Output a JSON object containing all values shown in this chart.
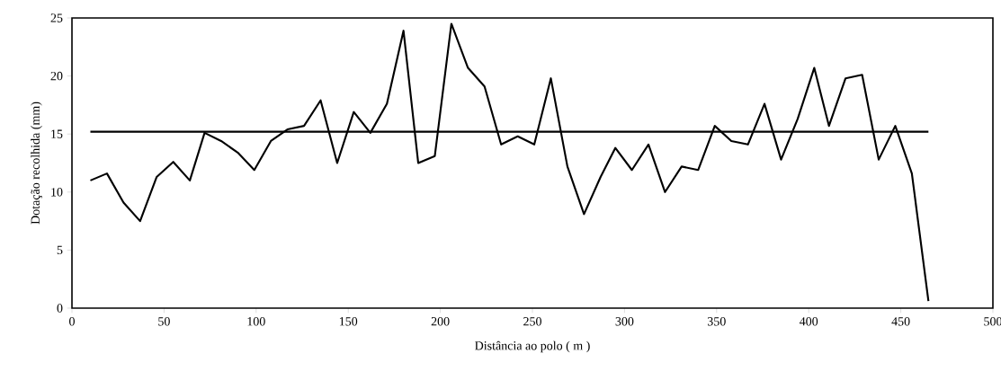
{
  "chart_data": {
    "type": "line",
    "xlabel": "Distância ao polo ( m )",
    "ylabel": "Dotação recolhida (mm)",
    "xlim": [
      0,
      500
    ],
    "ylim": [
      0,
      25
    ],
    "xticks": [
      0,
      50,
      100,
      150,
      200,
      250,
      300,
      350,
      400,
      450,
      500
    ],
    "yticks": [
      0,
      5,
      10,
      15,
      20,
      25
    ],
    "grid": false,
    "marker": "none",
    "line_style": "solid",
    "series": [
      {
        "color": "#000000",
        "x": [
          10,
          19,
          28,
          37,
          46,
          55,
          64,
          72,
          81,
          90,
          99,
          108,
          117,
          126,
          135,
          144,
          153,
          162,
          171,
          180,
          188,
          197,
          206,
          215,
          224,
          233,
          242,
          251,
          260,
          269,
          278,
          287,
          295,
          304,
          313,
          322,
          331,
          340,
          349,
          358,
          367,
          376,
          385,
          394,
          403,
          411,
          420,
          429,
          438,
          447,
          456,
          465
        ],
        "values": [
          11.0,
          11.6,
          9.1,
          7.5,
          11.3,
          12.6,
          11.0,
          15.1,
          14.4,
          13.4,
          11.9,
          14.4,
          15.4,
          15.7,
          17.9,
          12.5,
          16.9,
          15.1,
          17.6,
          23.9,
          12.5,
          13.1,
          24.5,
          20.7,
          19.1,
          14.1,
          14.8,
          14.1,
          19.8,
          12.2,
          8.1,
          11.3,
          13.8,
          11.9,
          14.1,
          10.0,
          12.2,
          11.9,
          15.7,
          14.4,
          14.1,
          17.6,
          12.8,
          16.3,
          20.7,
          15.7,
          19.8,
          20.1,
          12.8,
          15.7,
          11.6,
          0.6
        ]
      },
      {
        "color": "#000000",
        "x": [
          10,
          465
        ],
        "values": [
          15.2,
          15.2
        ]
      }
    ]
  }
}
